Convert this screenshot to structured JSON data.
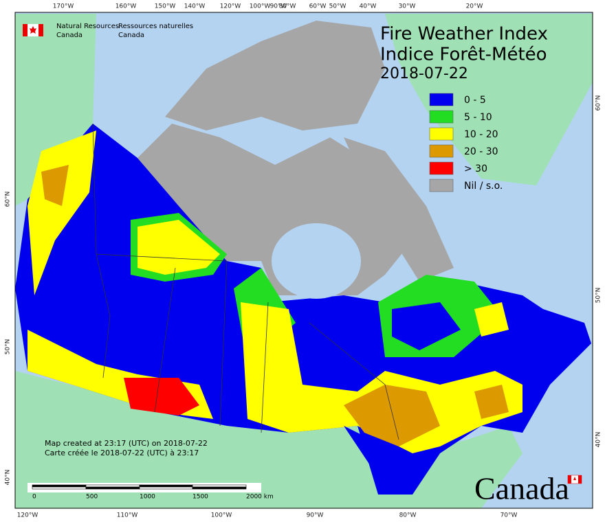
{
  "header": {
    "department_en": [
      "Natural Resources",
      "Canada"
    ],
    "department_fr": [
      "Ressources naturelles",
      "Canada"
    ]
  },
  "title": {
    "en": "Fire Weather Index",
    "fr": "Indice Forêt-Météo",
    "date": "2018-07-22"
  },
  "legend": [
    {
      "label": "0 - 5",
      "color": "#0000ee"
    },
    {
      "label": "5 - 10",
      "color": "#22dd22"
    },
    {
      "label": "10 - 20",
      "color": "#ffff00"
    },
    {
      "label": "20 - 30",
      "color": "#dd9a00"
    },
    {
      "label": "> 30",
      "color": "#ff0000"
    },
    {
      "label": "Nil / s.o.",
      "color": "#a6a6a6"
    }
  ],
  "credit": [
    "Map created at 23:17 (UTC) on 2018-07-22",
    "Carte créée le 2018-07-22 (UTC) à 23:17"
  ],
  "scale_bar": {
    "labels": [
      "0",
      "500",
      "1000",
      "1500",
      "2000 km"
    ]
  },
  "graticule": {
    "top": [
      "170°W",
      "160°W",
      "150°W",
      "140°W",
      "120°W",
      "100°W",
      "90°W",
      "80°W",
      "60°W",
      "50°W",
      "40°W",
      "30°W",
      "20°W"
    ],
    "bottom": [
      "120°W",
      "110°W",
      "100°W",
      "90°W",
      "80°W",
      "70°W"
    ],
    "left": [
      "60°N",
      "50°N",
      "40°N"
    ],
    "right": [
      "60°N",
      "50°N",
      "40°N"
    ]
  },
  "wordmark": "Canada"
}
